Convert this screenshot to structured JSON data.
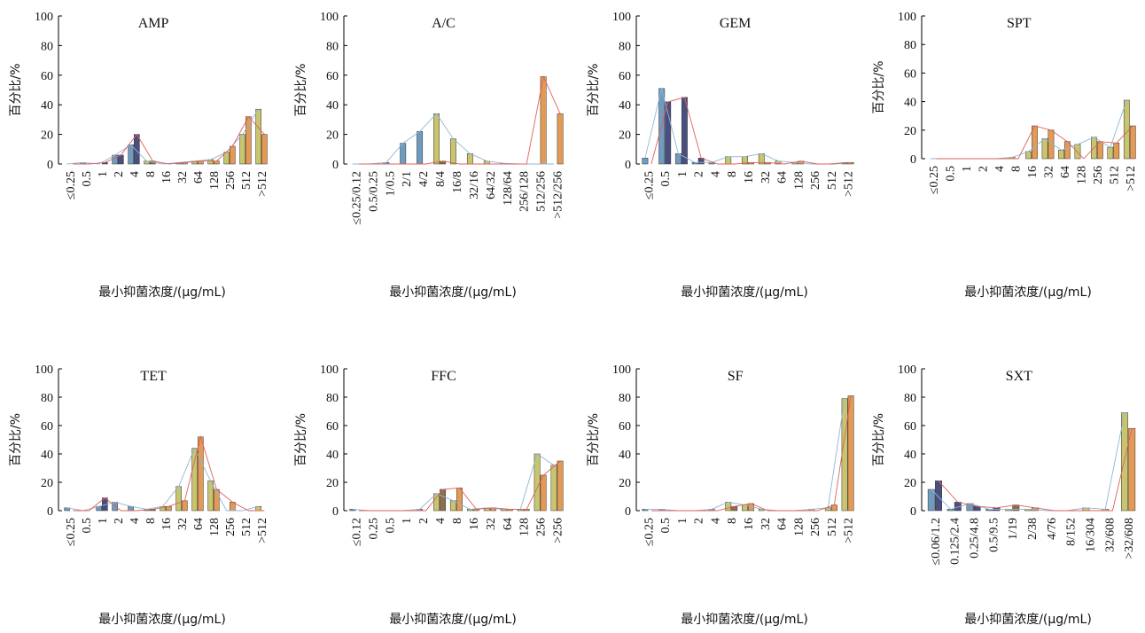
{
  "chart_data": [
    {
      "type": "bar",
      "title": "AMP",
      "xlabel": "最小抑菌浓度/(μg/mL)",
      "ylabel": "百分比/%",
      "ylim": [
        0,
        100
      ],
      "yticks": [
        "0",
        "20",
        "40",
        "60",
        "80",
        "100"
      ],
      "categories": [
        "≤0.25",
        "0.5",
        "1",
        "2",
        "4",
        "8",
        "16",
        "32",
        "64",
        "128",
        "256",
        "512",
        ">512"
      ],
      "series": [
        {
          "values": [
            0,
            1,
            0,
            6,
            13,
            2,
            0,
            1,
            2,
            3,
            8,
            20,
            37
          ]
        },
        {
          "values": [
            0,
            0,
            1,
            6,
            20,
            2,
            0,
            1,
            2,
            2,
            12,
            32,
            20
          ]
        }
      ]
    },
    {
      "type": "bar",
      "title": "A/C",
      "xlabel": "最小抑菌浓度/(μg/mL)",
      "ylabel": "百分比/%",
      "ylim": [
        0,
        100
      ],
      "yticks": [
        "0",
        "20",
        "40",
        "60",
        "80",
        "100"
      ],
      "categories": [
        "≤0.25/0.12",
        "0.5/0.25",
        "1/0.5",
        "2/1",
        "4/2",
        "8/4",
        "16/8",
        "32/16",
        "64/32",
        "128/64",
        "256/128",
        "512/256",
        ">512/256"
      ],
      "series": [
        {
          "values": [
            0,
            0,
            1,
            14,
            22,
            34,
            17,
            7,
            2,
            0.5,
            0,
            0,
            0
          ]
        },
        {
          "values": [
            0,
            0,
            0,
            0,
            0,
            2,
            0,
            0,
            0,
            0,
            0,
            59,
            34
          ]
        }
      ]
    },
    {
      "type": "bar",
      "title": "GEM",
      "xlabel": "最小抑菌浓度/(μg/mL)",
      "ylabel": "百分比/%",
      "ylim": [
        0,
        100
      ],
      "yticks": [
        "0",
        "20",
        "40",
        "60",
        "80",
        "100"
      ],
      "categories": [
        "≤0.25",
        "0.5",
        "1",
        "2",
        "4",
        "8",
        "16",
        "32",
        "64",
        "128",
        "256",
        "512",
        ">512"
      ],
      "series": [
        {
          "values": [
            4,
            51,
            7,
            1,
            1,
            5,
            5,
            7,
            2,
            1,
            0,
            0,
            1
          ]
        },
        {
          "values": [
            0,
            42,
            45,
            4,
            0,
            0,
            1,
            1,
            0,
            2,
            0,
            0,
            1
          ]
        }
      ]
    },
    {
      "type": "bar",
      "title": "SPT",
      "xlabel": "最小抑菌浓度/(μg/mL)",
      "ylabel": "百分比/%",
      "ylim": [
        0,
        100
      ],
      "yticks": [
        "0",
        "20",
        "40",
        "60",
        "80",
        "100"
      ],
      "categories": [
        "≤0.25",
        "0.5",
        "1",
        "2",
        "4",
        "8",
        "16",
        "32",
        "64",
        "128",
        "256",
        "512",
        ">512"
      ],
      "series": [
        {
          "values": [
            0,
            0,
            0,
            0,
            0,
            1,
            5,
            14,
            6,
            10,
            15,
            8,
            41
          ]
        },
        {
          "values": [
            0,
            0,
            0,
            0,
            0,
            0,
            23,
            20,
            12,
            0,
            12,
            11,
            23
          ]
        }
      ]
    },
    {
      "type": "bar",
      "title": "TET",
      "xlabel": "最小抑菌浓度/(μg/mL)",
      "ylabel": "百分比/%",
      "ylim": [
        0,
        100
      ],
      "yticks": [
        "0",
        "20",
        "40",
        "60",
        "80",
        "100"
      ],
      "categories": [
        "≤0.25",
        "0.5",
        "1",
        "2",
        "4",
        "8",
        "16",
        "32",
        "64",
        "128",
        "256",
        "512",
        ">512"
      ],
      "series": [
        {
          "values": [
            2,
            0,
            3,
            6,
            3,
            1,
            3,
            17,
            44,
            21,
            0,
            0,
            3
          ]
        },
        {
          "values": [
            0,
            0,
            9,
            0,
            0,
            1,
            3,
            7,
            52,
            15,
            6,
            0,
            0
          ]
        }
      ]
    },
    {
      "type": "bar",
      "title": "FFC",
      "xlabel": "最小抑菌浓度/(μg/mL)",
      "ylabel": "百分比/%",
      "ylim": [
        0,
        100
      ],
      "yticks": [
        "0",
        "20",
        "40",
        "60",
        "80",
        "100"
      ],
      "categories": [
        "≤0.12",
        "0.25",
        "0.5",
        "1",
        "2",
        "4",
        "8",
        "16",
        "32",
        "64",
        "128",
        "256",
        ">256"
      ],
      "series": [
        {
          "values": [
            1,
            0,
            0,
            0,
            1,
            12,
            7,
            1,
            2,
            1,
            1,
            40,
            32
          ]
        },
        {
          "values": [
            0,
            0,
            0,
            0,
            0,
            15,
            16,
            1,
            2,
            1,
            1,
            25,
            35
          ]
        }
      ]
    },
    {
      "type": "bar",
      "title": "SF",
      "xlabel": "最小抑菌浓度/(μg/mL)",
      "ylabel": "百分比/%",
      "ylim": [
        0,
        100
      ],
      "yticks": [
        "0",
        "20",
        "40",
        "60",
        "80",
        "100"
      ],
      "categories": [
        "≤0.25",
        "0.5",
        "1",
        "2",
        "4",
        "8",
        "16",
        "32",
        "64",
        "128",
        "256",
        "512",
        ">512"
      ],
      "series": [
        {
          "values": [
            1,
            1,
            0,
            0,
            1,
            6,
            4,
            1,
            0,
            0,
            1,
            2,
            79
          ]
        },
        {
          "values": [
            0,
            0,
            0,
            0,
            0,
            3,
            5,
            0,
            0,
            0,
            0,
            4,
            81
          ]
        }
      ]
    },
    {
      "type": "bar",
      "title": "SXT",
      "xlabel": "最小抑菌浓度/(μg/mL)",
      "ylabel": "百分比/%",
      "ylim": [
        0,
        100
      ],
      "yticks": [
        "0",
        "20",
        "40",
        "60",
        "80",
        "100"
      ],
      "categories": [
        "≤0.06/1.2",
        "0.125/2.4",
        "0.25/4.8",
        "0.5/9.5",
        "1/19",
        "2/38",
        "4/76",
        "8/152",
        "16/304",
        "32/608",
        ">32/608"
      ],
      "series": [
        {
          "values": [
            15,
            1,
            5,
            1,
            1,
            1,
            0,
            0,
            2,
            1,
            69
          ]
        },
        {
          "values": [
            21,
            6,
            3,
            2,
            4,
            2,
            0,
            0,
            0,
            0,
            58
          ]
        }
      ]
    }
  ],
  "colors": {
    "series_a_bars": [
      "#6f9bbf",
      "#6f9bbf",
      "#6f9bbf",
      "#6f9bbf",
      "#6f9bbf",
      "#c9c46e",
      "#c9c46e",
      "#c9c46e",
      "#c9c46e",
      "#c9c46e",
      "#c9c46e",
      "#c9c46e",
      "#c9c46e"
    ],
    "series_b_bars": [
      "#4a4f80",
      "#4a4f80",
      "#4a4f80",
      "#4a4f80",
      "#4a4f80",
      "#8c6f4b",
      "#e39a55",
      "#e39a55",
      "#e39a55",
      "#e39a55",
      "#e39a55",
      "#e39a55",
      "#e39a55"
    ],
    "series_a_line": "#8fb6d6",
    "series_b_line": "#e0605a"
  }
}
